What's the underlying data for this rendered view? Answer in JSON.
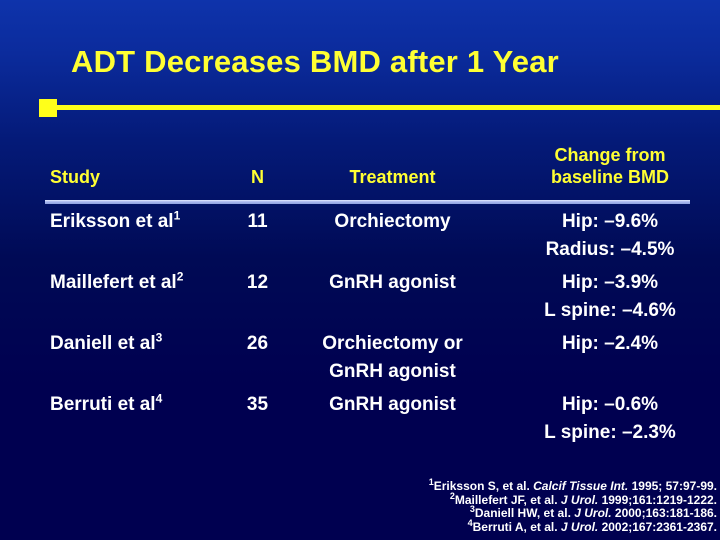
{
  "slide_title": "ADT Decreases BMD after 1 Year",
  "colors": {
    "background_top": "#0e33ab",
    "background_bottom": "#000050",
    "title_text": "#ffff33",
    "accent_yellow": "#ffff1a",
    "header_text": "#ffff33",
    "body_text": "#ffffff",
    "header_rule": "#aab8f0"
  },
  "table": {
    "headers": {
      "study": "Study",
      "n": "N",
      "treatment": "Treatment",
      "change_line1": "Change from",
      "change_line2": "baseline BMD"
    },
    "rows": [
      {
        "study": "Eriksson et al",
        "study_sup": "1",
        "n": "11",
        "treatment": [
          "Orchiectomy"
        ],
        "change": [
          "Hip: –9.6%",
          "Radius: –4.5%"
        ]
      },
      {
        "study": "Maillefert et al",
        "study_sup": "2",
        "n": "12",
        "treatment": [
          "GnRH agonist"
        ],
        "change": [
          "Hip: –3.9%",
          "L spine: –4.6%"
        ]
      },
      {
        "study": "Daniell et al",
        "study_sup": "3",
        "n": "26",
        "treatment": [
          "Orchiectomy or",
          "GnRH agonist"
        ],
        "change": [
          "Hip: –2.4%"
        ]
      },
      {
        "study": "Berruti et al",
        "study_sup": "4",
        "n": "35",
        "treatment": [
          "GnRH agonist"
        ],
        "change": [
          "Hip: –0.6%",
          "L spine: –2.3%"
        ]
      }
    ]
  },
  "citations": [
    {
      "sup": "1",
      "authors": "Eriksson S, et al. ",
      "journal": "Calcif Tissue Int.",
      "rest": " 1995; 57:97-99."
    },
    {
      "sup": "2",
      "authors": "Maillefert JF, et al. ",
      "journal": "J Urol.",
      "rest": " 1999;161:1219-1222."
    },
    {
      "sup": "3",
      "authors": "Daniell HW, et al. ",
      "journal": "J Urol.",
      "rest": " 2000;163:181-186."
    },
    {
      "sup": "4",
      "authors": "Berruti A, et al. ",
      "journal": "J Urol.",
      "rest": " 2002;167:2361-2367."
    }
  ]
}
